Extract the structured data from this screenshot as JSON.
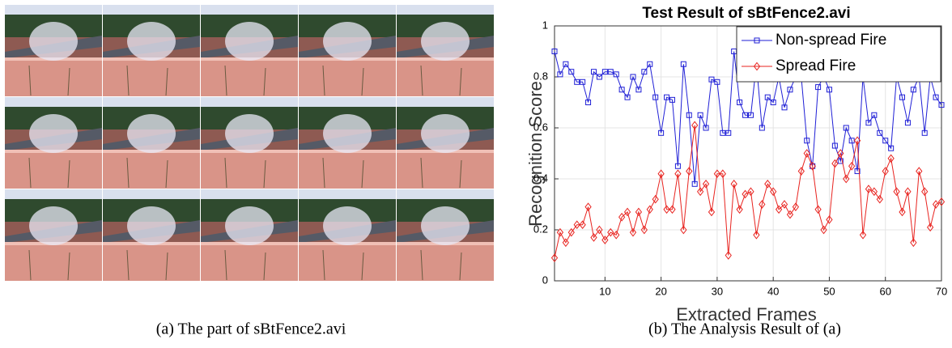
{
  "captions": {
    "left": "(a) The part of sBtFence2.avi",
    "right": "(b) The Analysis Result of (a)"
  },
  "chart_data": {
    "type": "line",
    "title": "Test Result of sBtFence2.avi",
    "xlabel": "Extracted Frames",
    "ylabel": "Recognition Score",
    "x": [
      1,
      2,
      3,
      4,
      5,
      6,
      7,
      8,
      9,
      10,
      11,
      12,
      13,
      14,
      15,
      16,
      17,
      18,
      19,
      20,
      21,
      22,
      23,
      24,
      25,
      26,
      27,
      28,
      29,
      30,
      31,
      32,
      33,
      34,
      35,
      36,
      37,
      38,
      39,
      40,
      41,
      42,
      43,
      44,
      45,
      46,
      47,
      48,
      49,
      50,
      51,
      52,
      53,
      54,
      55,
      56,
      57,
      58,
      59,
      60,
      61,
      62,
      63,
      64,
      65,
      66,
      67,
      68,
      69,
      70
    ],
    "series": [
      {
        "name": "Non-spread Fire",
        "color": "#1f1fd6",
        "marker": "square",
        "values": [
          0.9,
          0.81,
          0.85,
          0.82,
          0.78,
          0.78,
          0.7,
          0.82,
          0.8,
          0.82,
          0.82,
          0.81,
          0.75,
          0.72,
          0.8,
          0.75,
          0.82,
          0.85,
          0.72,
          0.58,
          0.72,
          0.71,
          0.45,
          0.85,
          0.65,
          0.38,
          0.65,
          0.6,
          0.79,
          0.78,
          0.58,
          0.58,
          0.9,
          0.7,
          0.65,
          0.65,
          0.85,
          0.6,
          0.72,
          0.7,
          0.8,
          0.68,
          0.75,
          0.8,
          0.8,
          0.55,
          0.45,
          0.76,
          0.8,
          0.75,
          0.53,
          0.47,
          0.6,
          0.55,
          0.43,
          0.8,
          0.62,
          0.65,
          0.58,
          0.55,
          0.52,
          0.8,
          0.72,
          0.62,
          0.75,
          0.8,
          0.58,
          0.8,
          0.72,
          0.69
        ]
      },
      {
        "name": "Spread Fire",
        "color": "#e8231f",
        "marker": "diamond",
        "values": [
          0.09,
          0.19,
          0.15,
          0.19,
          0.22,
          0.22,
          0.29,
          0.17,
          0.2,
          0.16,
          0.19,
          0.18,
          0.25,
          0.27,
          0.19,
          0.27,
          0.2,
          0.28,
          0.32,
          0.42,
          0.28,
          0.28,
          0.42,
          0.2,
          0.43,
          0.61,
          0.35,
          0.38,
          0.27,
          0.42,
          0.42,
          0.1,
          0.38,
          0.28,
          0.34,
          0.35,
          0.18,
          0.3,
          0.38,
          0.35,
          0.28,
          0.3,
          0.26,
          0.29,
          0.43,
          0.5,
          0.45,
          0.28,
          0.2,
          0.24,
          0.46,
          0.5,
          0.4,
          0.45,
          0.55,
          0.18,
          0.36,
          0.35,
          0.32,
          0.43,
          0.48,
          0.35,
          0.27,
          0.35,
          0.15,
          0.43,
          0.35,
          0.21,
          0.3,
          0.31
        ]
      }
    ],
    "xlim": [
      1,
      70
    ],
    "xticks": [
      10,
      20,
      30,
      40,
      50,
      60,
      70
    ],
    "ylim": [
      0,
      1
    ],
    "yticks": [
      0,
      0.2,
      0.4,
      0.6,
      0.8,
      1
    ],
    "grid": true,
    "legend": "upper right"
  }
}
